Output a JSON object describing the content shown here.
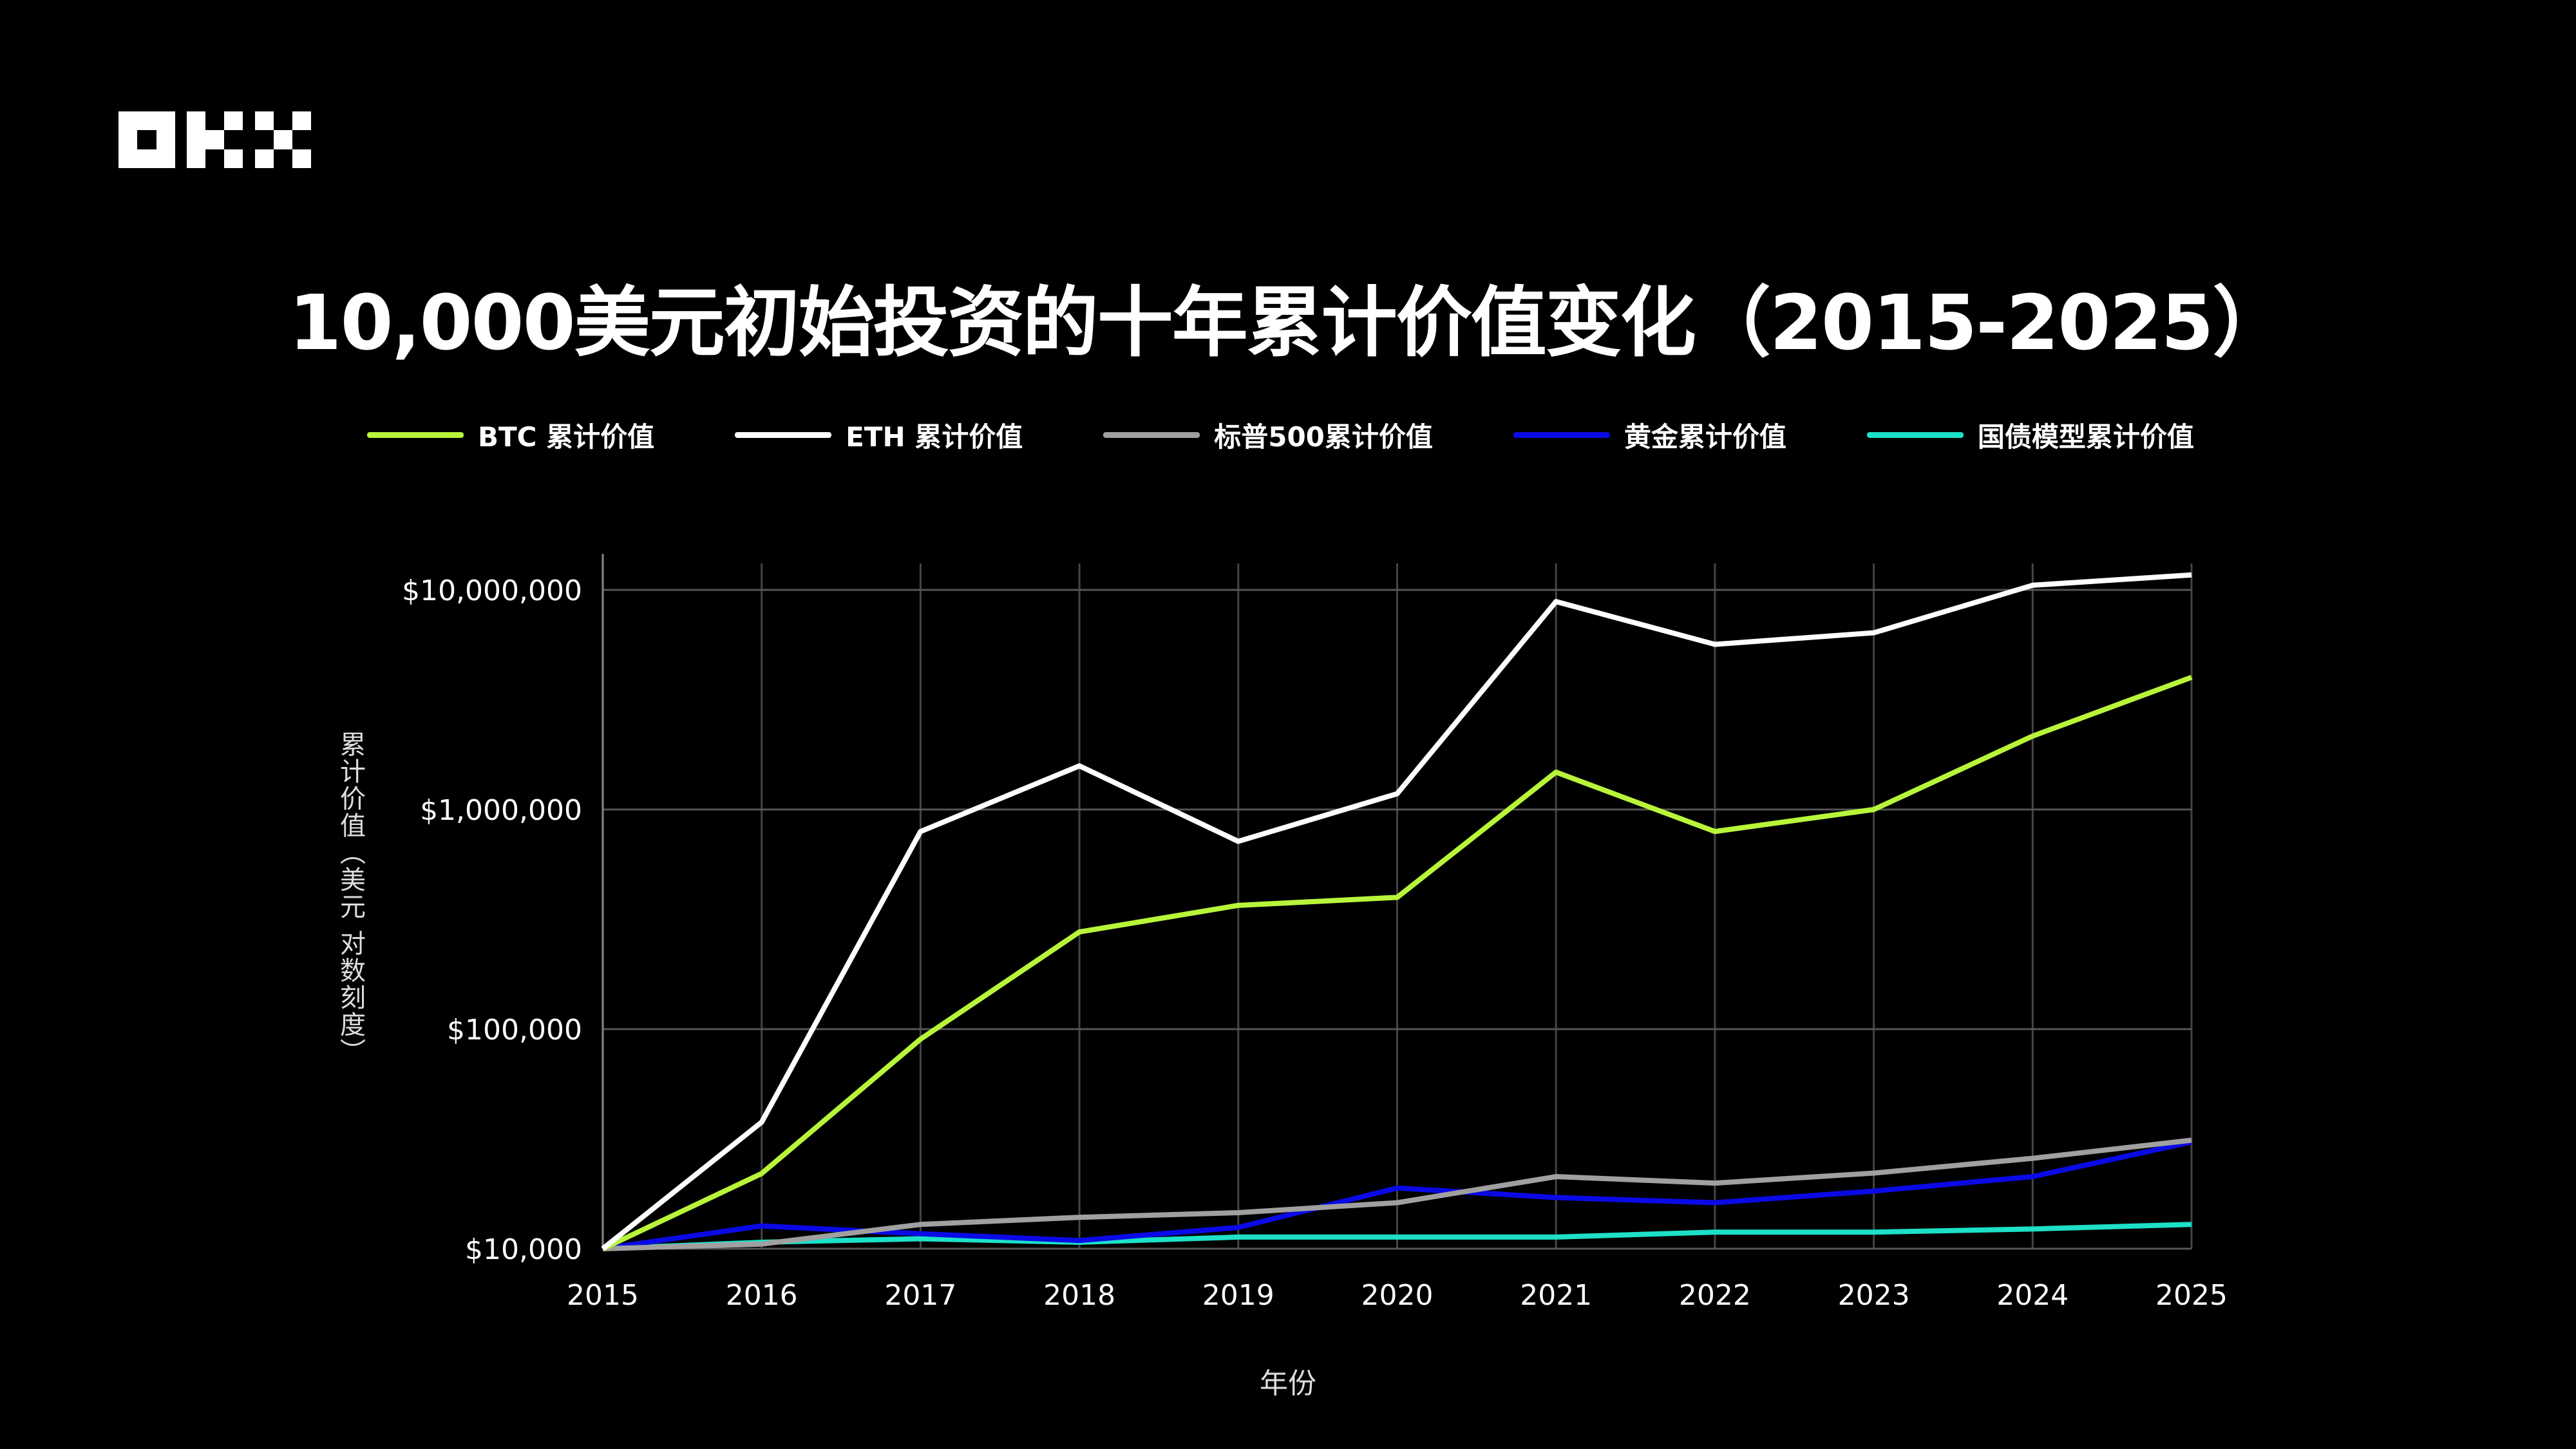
{
  "brand": {
    "logo_text": "OKX"
  },
  "chart_data": {
    "type": "line",
    "title": "10,000美元初始投资的十年累计价值变化（2015-2025）",
    "xlabel": "年份",
    "ylabel": "累计价值（美元 对数刻度）",
    "y_scale": "log",
    "ylim": [
      10000,
      14000000
    ],
    "yticks": [
      10000,
      100000,
      1000000,
      10000000
    ],
    "ytick_labels": [
      "$10,000",
      "$100,000",
      "$1,000,000",
      "$10,000,000"
    ],
    "x": [
      2015,
      2016,
      2017,
      2018,
      2019,
      2020,
      2021,
      2022,
      2023,
      2024,
      2025
    ],
    "xtick_labels": [
      "2015",
      "2016",
      "2017",
      "2018",
      "2019",
      "2020",
      "2021",
      "2022",
      "2023",
      "2024",
      "2025"
    ],
    "grid": true,
    "legend_placement": "top",
    "series": [
      {
        "name": "BTC 累计价值",
        "color": "#b8f53a",
        "values": [
          10000,
          22000,
          90000,
          277000,
          366000,
          398000,
          1480000,
          794000,
          1000000,
          2160000,
          4000000
        ]
      },
      {
        "name": "ETH 累计价值",
        "color": "#ffffff",
        "values": [
          10000,
          37700,
          794000,
          1580000,
          716000,
          1180000,
          8850000,
          5650000,
          6380000,
          10500000,
          11700000
        ]
      },
      {
        "name": "标普500累计价值",
        "color": "#a0a0a0",
        "values": [
          10000,
          10500,
          12900,
          13900,
          14600,
          16200,
          21300,
          19900,
          22100,
          25800,
          31200
        ]
      },
      {
        "name": "黄金累计价值",
        "color": "#0a0ae6",
        "values": [
          10000,
          12700,
          11700,
          10900,
          12500,
          18900,
          17100,
          16200,
          18300,
          21300,
          30600
        ]
      },
      {
        "name": "国债模型累计价值",
        "color": "#1de0c8",
        "values": [
          10000,
          10700,
          11100,
          10700,
          11300,
          11300,
          11300,
          11900,
          11900,
          12300,
          12900
        ]
      }
    ]
  }
}
